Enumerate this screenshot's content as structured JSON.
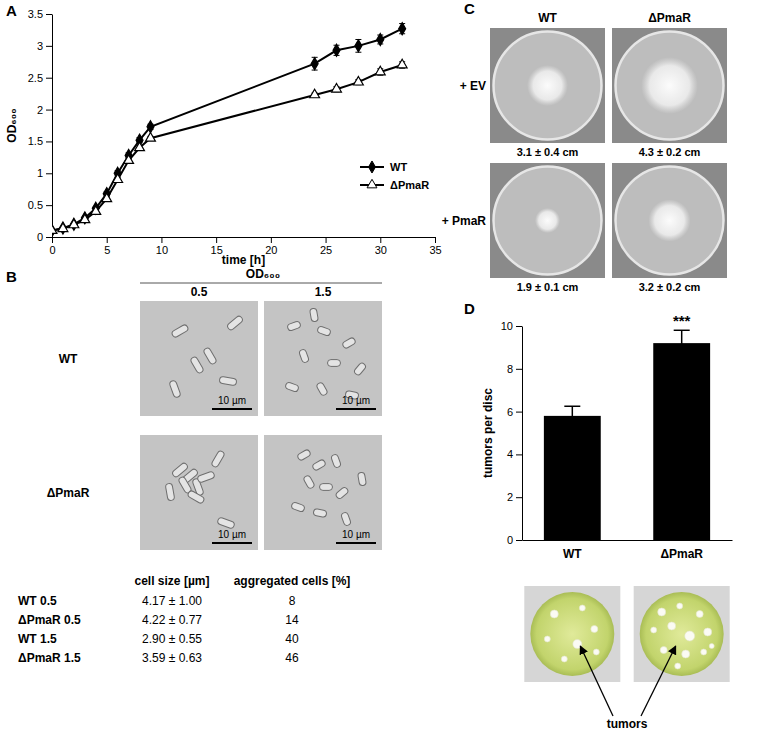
{
  "chart_data": [
    {
      "type": "line",
      "x_label": "time [h]",
      "y_label": "OD₆₀₀",
      "x": [
        0,
        1,
        2,
        3,
        4,
        5,
        6,
        7,
        8,
        9,
        24,
        26,
        28,
        30,
        32
      ],
      "series": [
        {
          "name": "WT",
          "color": "#000000",
          "marker": "diamond",
          "values": [
            0.1,
            0.14,
            0.2,
            0.3,
            0.45,
            0.68,
            1.0,
            1.28,
            1.52,
            1.73,
            2.72,
            2.93,
            3.0,
            3.1,
            3.27
          ],
          "errors": [
            0.01,
            0.01,
            0.01,
            0.02,
            0.02,
            0.03,
            0.04,
            0.04,
            0.04,
            0.04,
            0.1,
            0.08,
            0.1,
            0.07,
            0.08
          ]
        },
        {
          "name": "ΔPmaR",
          "color": "#000000",
          "marker": "triangle-open",
          "values": [
            0.1,
            0.13,
            0.19,
            0.27,
            0.4,
            0.6,
            0.9,
            1.2,
            1.4,
            1.55,
            2.23,
            2.32,
            2.43,
            2.59,
            2.7
          ],
          "errors": [
            0.01,
            0.01,
            0.01,
            0.02,
            0.02,
            0.03,
            0.03,
            0.04,
            0.04,
            0.03,
            0.03,
            0.04,
            0.04,
            0.05,
            0.05
          ]
        }
      ],
      "xlim": [
        0,
        35
      ],
      "ylim": [
        0,
        3.5
      ],
      "xticks": [
        0,
        5,
        10,
        15,
        20,
        25,
        30,
        35
      ],
      "yticks": [
        0,
        0.5,
        1,
        1.5,
        2,
        2.5,
        3,
        3.5
      ],
      "legend": "lower-right"
    },
    {
      "type": "bar",
      "y_label": "tumors per disc",
      "categories": [
        "WT",
        "ΔPmaR"
      ],
      "values": [
        5.8,
        9.2
      ],
      "errors": [
        0.45,
        0.6
      ],
      "significance": [
        null,
        "***"
      ],
      "color": "#000000",
      "ylim": [
        0,
        10
      ],
      "yticks": [
        0,
        2,
        4,
        6,
        8,
        10
      ]
    }
  ],
  "panel_labels": [
    "A",
    "B",
    "C",
    "D"
  ],
  "micrographs": {
    "header": "OD₆₀₀",
    "columns": [
      "0.5",
      "1.5"
    ],
    "rows": [
      "WT",
      "ΔPmaR"
    ],
    "scale_bar": "10 µm",
    "table": {
      "header": [
        "cell size [µm]",
        "aggregated cells [%]"
      ],
      "rows": [
        [
          "WT 0.5",
          "4.17 ± 1.00",
          "8"
        ],
        [
          "ΔPmaR 0.5",
          "4.22 ± 0.77",
          "14"
        ],
        [
          "WT 1.5",
          "2.90 ± 0.55",
          "40"
        ],
        [
          "ΔPmaR 1.5",
          "3.59 ± 0.63",
          "46"
        ]
      ]
    }
  },
  "swarming": {
    "columns": [
      "WT",
      "ΔPmaR"
    ],
    "rows": [
      "+ EV",
      "+ PmaR"
    ],
    "plates": [
      [
        {
          "value": 3.1,
          "error": 0.4,
          "label": "3.1 ± 0.4 cm"
        },
        {
          "value": 4.3,
          "error": 0.2,
          "label": "4.3 ± 0.2 cm"
        }
      ],
      [
        {
          "value": 1.9,
          "error": 0.1,
          "label": "1.9 ± 0.1 cm"
        },
        {
          "value": 3.2,
          "error": 0.2,
          "label": "3.2 ± 0.2 cm"
        }
      ]
    ]
  },
  "disc_photos": {
    "label": "tumors"
  }
}
